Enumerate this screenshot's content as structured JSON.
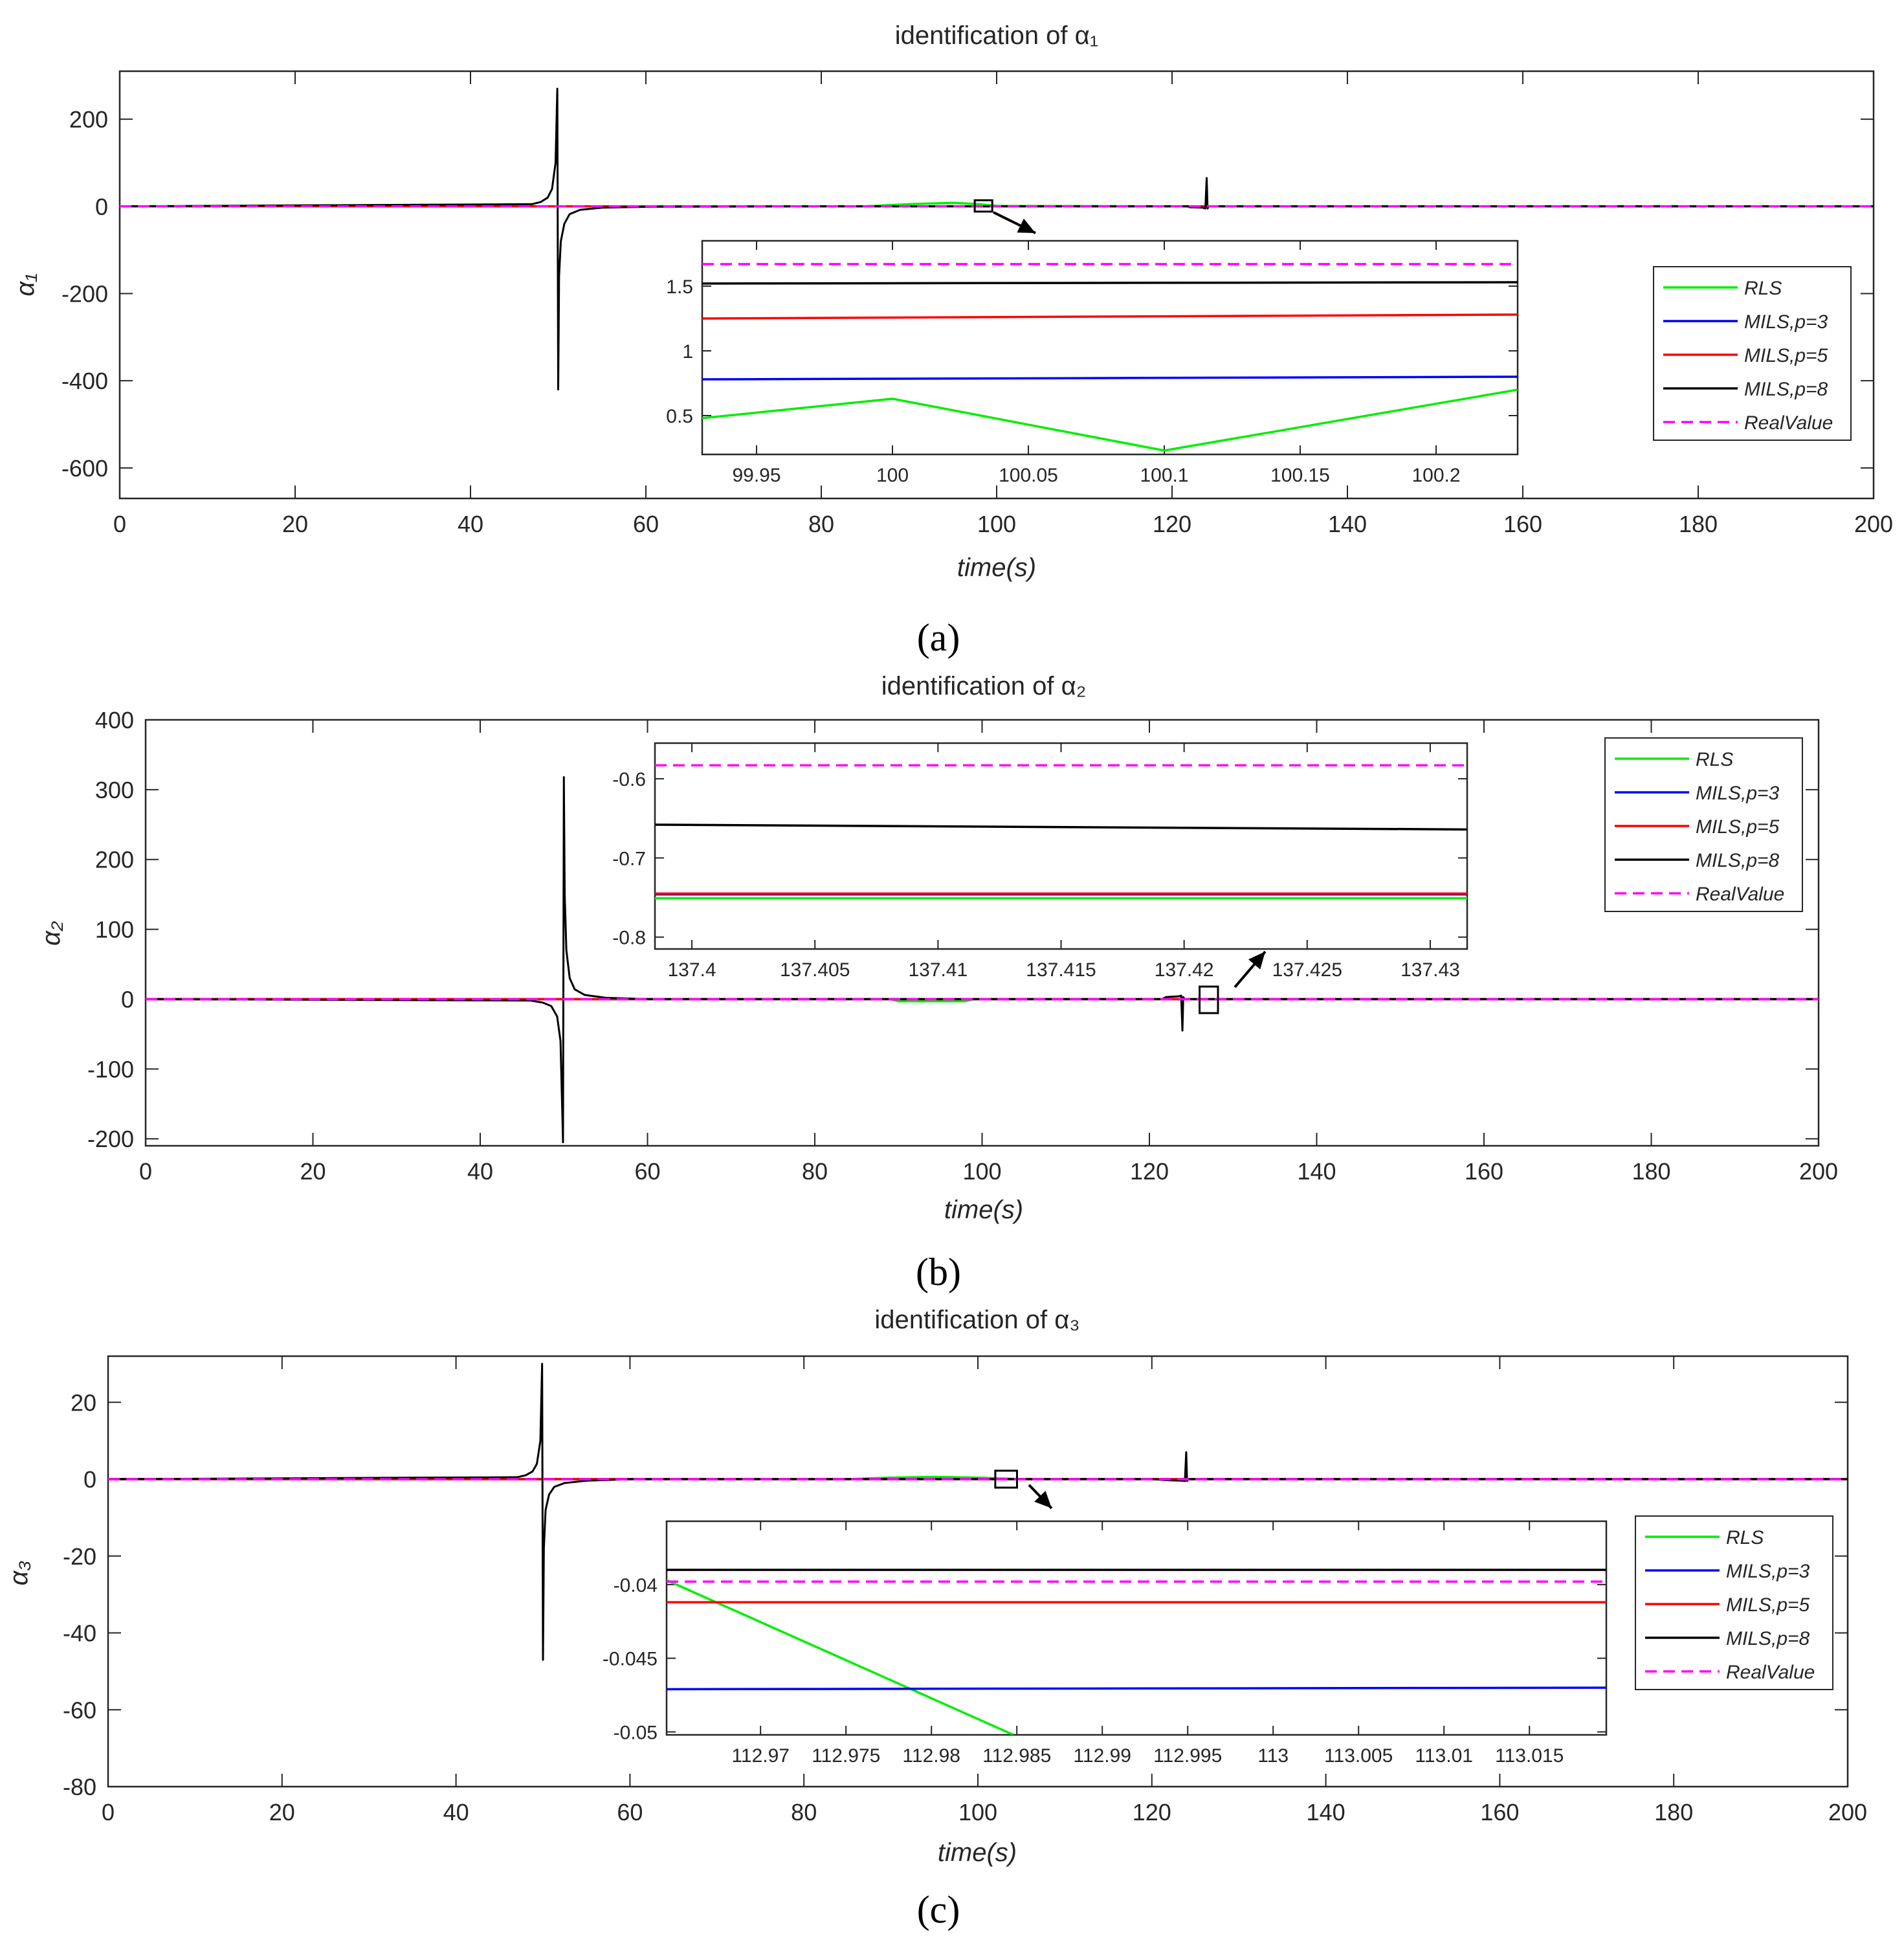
{
  "chart_data": [
    {
      "type": "line",
      "panel_label": "(a)",
      "title": "identification of α₁",
      "xlabel": "time(s)",
      "ylabel": "α₁",
      "xlim": [
        0,
        200
      ],
      "ylim": [
        -670,
        310
      ],
      "xticks": [
        0,
        20,
        40,
        60,
        80,
        100,
        120,
        140,
        160,
        180,
        200
      ],
      "yticks": [
        -600,
        -400,
        -200,
        0,
        200
      ],
      "grid": false,
      "series": [
        {
          "name": "RLS",
          "color": "#00ee00",
          "dash": false,
          "x": [
            0,
            45,
            85,
            90,
            95,
            98,
            100,
            120,
            200
          ],
          "y": [
            0,
            0,
            0,
            5,
            8,
            5,
            1,
            0,
            0
          ]
        },
        {
          "name": "MILS,p=3",
          "color": "#0000ff",
          "dash": false,
          "x": [
            0,
            200
          ],
          "y": [
            0,
            0
          ]
        },
        {
          "name": "MILS,p=5",
          "color": "#ff0000",
          "dash": false,
          "x": [
            0,
            200
          ],
          "y": [
            0,
            0
          ]
        },
        {
          "name": "MILS,p=8",
          "color": "#000000",
          "dash": false,
          "x": [
            0,
            47,
            48,
            48.8,
            49.3,
            49.7,
            49.9,
            50.0,
            50.1,
            50.3,
            50.7,
            51.3,
            52.5,
            55,
            60,
            80,
            100,
            120,
            121.8,
            122,
            123.5,
            123.8,
            123.95,
            124.05,
            124.2,
            124.5,
            200
          ],
          "y": [
            0,
            5,
            10,
            20,
            40,
            100,
            270,
            -420,
            -160,
            -80,
            -40,
            -18,
            -8,
            -3,
            -1,
            0,
            0,
            0,
            0,
            -2,
            -3,
            -5,
            65,
            -5,
            0,
            0,
            0
          ]
        },
        {
          "name": "RealValue",
          "color": "#ff00ff",
          "dash": true,
          "x": [
            0,
            200
          ],
          "y": [
            0,
            0
          ]
        }
      ],
      "zoom_box": {
        "x": [
          97.5,
          99.5
        ],
        "y": [
          -12,
          14
        ]
      },
      "inset": {
        "xlim": [
          99.93,
          100.23
        ],
        "ylim": [
          0.2,
          1.85
        ],
        "xticks": [
          99.95,
          100,
          100.05,
          100.1,
          100.15,
          100.2
        ],
        "yticks": [
          0.5,
          1,
          1.5
        ],
        "series": [
          {
            "name": "RLS",
            "x": [
              99.93,
              100,
              100.1,
              100.23
            ],
            "y": [
              0.48,
              0.63,
              0.23,
              0.7
            ]
          },
          {
            "name": "MILS,p=3",
            "x": [
              99.93,
              100.23
            ],
            "y": [
              0.78,
              0.8
            ]
          },
          {
            "name": "MILS,p=5",
            "x": [
              99.93,
              100.23
            ],
            "y": [
              1.25,
              1.28
            ]
          },
          {
            "name": "MILS,p=8",
            "x": [
              99.93,
              100.23
            ],
            "y": [
              1.52,
              1.53
            ]
          },
          {
            "name": "RealValue",
            "x": [
              99.93,
              100.23
            ],
            "y": [
              1.67,
              1.67
            ]
          }
        ]
      }
    },
    {
      "type": "line",
      "panel_label": "(b)",
      "title": "identification of α₂",
      "xlabel": "time(s)",
      "ylabel": "α₂",
      "xlim": [
        0,
        200
      ],
      "ylim": [
        -210,
        400
      ],
      "xticks": [
        0,
        20,
        40,
        60,
        80,
        100,
        120,
        140,
        160,
        180,
        200
      ],
      "yticks": [
        -200,
        -100,
        0,
        100,
        200,
        300,
        400
      ],
      "grid": false,
      "series": [
        {
          "name": "RLS",
          "color": "#00ee00",
          "dash": false,
          "x": [
            0,
            89,
            90,
            98,
            99,
            200
          ],
          "y": [
            0,
            0,
            -3,
            -3,
            0,
            0
          ]
        },
        {
          "name": "MILS,p=3",
          "color": "#0000ff",
          "dash": false,
          "x": [
            0,
            200
          ],
          "y": [
            0,
            0
          ]
        },
        {
          "name": "MILS,p=5",
          "color": "#ff0000",
          "dash": false,
          "x": [
            0,
            200
          ],
          "y": [
            0,
            0
          ]
        },
        {
          "name": "MILS,p=8",
          "color": "#000000",
          "dash": false,
          "x": [
            0,
            46,
            47.5,
            48.5,
            49.2,
            49.6,
            49.9,
            50.0,
            50.1,
            50.3,
            50.7,
            51.3,
            52.5,
            55,
            60,
            80,
            100,
            120,
            121.5,
            122,
            123.5,
            123.8,
            123.95,
            124.05,
            124.2,
            124.5,
            200
          ],
          "y": [
            0,
            -2,
            -5,
            -10,
            -25,
            -60,
            -205,
            318,
            150,
            70,
            30,
            14,
            6,
            2,
            0,
            0,
            0,
            0,
            0,
            3,
            4,
            5,
            -45,
            3,
            0,
            0,
            0
          ]
        },
        {
          "name": "RealValue",
          "color": "#ff00ff",
          "dash": true,
          "x": [
            0,
            200
          ],
          "y": [
            0,
            0
          ]
        }
      ],
      "zoom_box": {
        "x": [
          126,
          128.2
        ],
        "y": [
          -20,
          18
        ]
      },
      "inset": {
        "xlim": [
          137.3985,
          137.4315
        ],
        "ylim": [
          -0.815,
          -0.555
        ],
        "xticks": [
          137.4,
          137.405,
          137.41,
          137.415,
          137.42,
          137.425,
          137.43
        ],
        "yticks": [
          -0.8,
          -0.7,
          -0.6
        ],
        "series": [
          {
            "name": "RLS",
            "x": [
              137.3985,
              137.4315
            ],
            "y": [
              -0.751,
              -0.751
            ]
          },
          {
            "name": "MILS,p=3",
            "x": [
              137.3985,
              137.4315
            ],
            "y": [
              -0.746,
              -0.746
            ]
          },
          {
            "name": "MILS,p=5",
            "x": [
              137.3985,
              137.4315
            ],
            "y": [
              -0.745,
              -0.745
            ]
          },
          {
            "name": "MILS,p=8",
            "x": [
              137.3985,
              137.4315
            ],
            "y": [
              -0.658,
              -0.664
            ]
          },
          {
            "name": "RealValue",
            "x": [
              137.3985,
              137.4315
            ],
            "y": [
              -0.583,
              -0.583
            ]
          }
        ]
      }
    },
    {
      "type": "line",
      "panel_label": "(c)",
      "title": "identification of α₃",
      "xlabel": "time(s)",
      "ylabel": "α₃",
      "xlim": [
        0,
        200
      ],
      "ylim": [
        -80,
        32
      ],
      "xticks": [
        0,
        20,
        40,
        60,
        80,
        100,
        120,
        140,
        160,
        180,
        200
      ],
      "yticks": [
        -80,
        -60,
        -40,
        -20,
        0,
        20
      ],
      "grid": false,
      "series": [
        {
          "name": "RLS",
          "color": "#00ee00",
          "dash": false,
          "x": [
            0,
            85,
            90,
            95,
            100,
            105,
            200
          ],
          "y": [
            0,
            0,
            0.4,
            0.6,
            0.4,
            0,
            0
          ]
        },
        {
          "name": "MILS,p=3",
          "color": "#0000ff",
          "dash": false,
          "x": [
            0,
            200
          ],
          "y": [
            0,
            0
          ]
        },
        {
          "name": "MILS,p=5",
          "color": "#ff0000",
          "dash": false,
          "x": [
            0,
            200
          ],
          "y": [
            0,
            0
          ]
        },
        {
          "name": "MILS,p=8",
          "color": "#000000",
          "dash": false,
          "x": [
            0,
            47,
            48,
            48.8,
            49.3,
            49.7,
            49.9,
            50.0,
            50.1,
            50.3,
            50.7,
            51.3,
            52.5,
            55,
            60,
            80,
            100,
            120,
            122,
            123.5,
            123.8,
            123.95,
            124.05,
            124.2,
            124.5,
            200
          ],
          "y": [
            0,
            0.5,
            1,
            2,
            4,
            10,
            30,
            -47,
            -18,
            -8,
            -4,
            -2,
            -1,
            -0.4,
            0,
            0,
            0,
            0,
            -0.3,
            -0.4,
            -0.5,
            7,
            -0.5,
            0,
            0,
            0
          ]
        },
        {
          "name": "RealValue",
          "color": "#ff00ff",
          "dash": true,
          "x": [
            0,
            200
          ],
          "y": [
            0,
            0
          ]
        }
      ],
      "zoom_box": {
        "x": [
          102,
          104.5
        ],
        "y": [
          -2.2,
          2.2
        ]
      },
      "inset": {
        "xlim": [
          112.9645,
          113.0195
        ],
        "ylim": [
          -0.0502,
          -0.0357
        ],
        "xticks": [
          112.97,
          112.975,
          112.98,
          112.985,
          112.99,
          112.995,
          113,
          113.005,
          113.01,
          113.015
        ],
        "yticks": [
          -0.05,
          -0.045,
          -0.04
        ],
        "series": [
          {
            "name": "RLS",
            "x": [
              112.9645,
              112.9848
            ],
            "y": [
              -0.0397,
              -0.0502
            ]
          },
          {
            "name": "MILS,p=3",
            "x": [
              112.9645,
              113.0195
            ],
            "y": [
              -0.0471,
              -0.047
            ]
          },
          {
            "name": "MILS,p=5",
            "x": [
              112.9645,
              113.0195
            ],
            "y": [
              -0.0412,
              -0.0412
            ]
          },
          {
            "name": "MILS,p=8",
            "x": [
              112.9645,
              113.0195
            ],
            "y": [
              -0.039,
              -0.039
            ]
          },
          {
            "name": "RealValue",
            "x": [
              112.9645,
              113.0195
            ],
            "y": [
              -0.0398,
              -0.0398
            ]
          }
        ]
      }
    }
  ]
}
